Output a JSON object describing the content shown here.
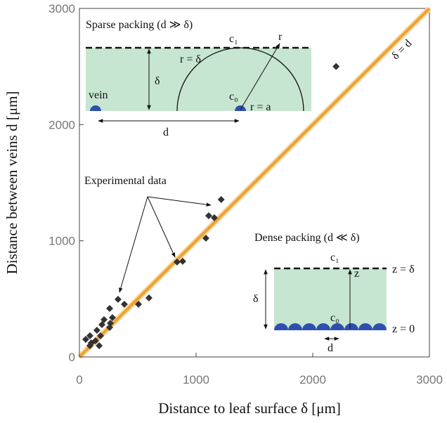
{
  "chart_data": {
    "type": "scatter",
    "x_label": "Distance to leaf surface δ [μm]",
    "y_label": "Distance between veins d [μm]",
    "xlim": [
      0,
      3000
    ],
    "ylim": [
      0,
      3000
    ],
    "xticks": [
      0,
      1000,
      2000,
      3000
    ],
    "yticks": [
      0,
      1000,
      2000,
      3000
    ],
    "series": [
      {
        "name": "Experimental data",
        "color": "#333333",
        "x": [
          2200,
          1215,
          1108,
          1156,
          1084,
          837,
          885,
          506,
          596,
          331,
          385,
          259,
          283,
          211,
          193,
          265,
          259,
          150,
          181,
          90,
          54,
          102,
          138,
          90,
          169
        ],
        "values": [
          2500,
          1355,
          1216,
          1198,
          1022,
          817,
          823,
          454,
          508,
          496,
          454,
          417,
          339,
          321,
          278,
          290,
          254,
          230,
          182,
          182,
          151,
          121,
          139,
          97,
          97
        ]
      },
      {
        "name": "δ = d",
        "color": "#f0a030",
        "x": [
          0,
          3000
        ],
        "values": [
          0,
          3000
        ]
      }
    ],
    "insets": {
      "sparse": {
        "title": "Sparse packing (d ≫ δ)",
        "c1": "c₁",
        "r": "r",
        "r_delta": "r = δ",
        "delta": "δ",
        "vein": "vein",
        "c0": "c₀",
        "r_a": "r = a",
        "d": "d"
      },
      "dense": {
        "title": "Dense packing (d ≪ δ)",
        "c1": "c₁",
        "z": "z",
        "z_delta": "z = δ",
        "delta": "δ",
        "c0": "c₀",
        "z0": "z = 0",
        "d": "d"
      }
    }
  }
}
